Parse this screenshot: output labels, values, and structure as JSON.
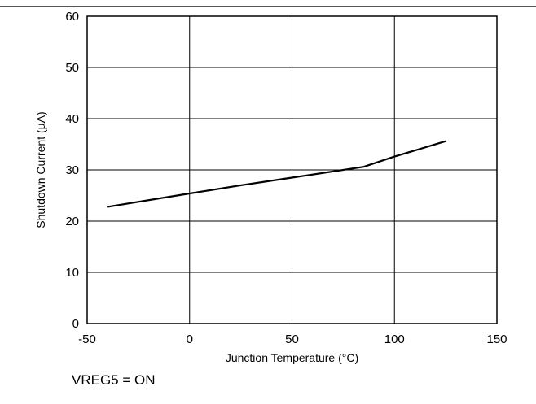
{
  "chart_data": {
    "type": "line",
    "title": "",
    "xlabel": "Junction Temperature (°C)",
    "ylabel": "Shutdown Current (µA)",
    "xlim": [
      -50,
      150
    ],
    "ylim": [
      0,
      60
    ],
    "x_ticks": [
      -50,
      0,
      50,
      100,
      150
    ],
    "y_ticks": [
      0,
      10,
      20,
      30,
      40,
      50,
      60
    ],
    "grid": true,
    "legend": "none",
    "series": [
      {
        "color": "#000000",
        "points": [
          {
            "x": -40,
            "y": 22.8
          },
          {
            "x": 0,
            "y": 25.4
          },
          {
            "x": 25,
            "y": 27.0
          },
          {
            "x": 50,
            "y": 28.5
          },
          {
            "x": 85,
            "y": 30.6
          },
          {
            "x": 100,
            "y": 32.6
          },
          {
            "x": 125,
            "y": 35.6
          }
        ]
      }
    ]
  },
  "note": "VREG5 = ON"
}
